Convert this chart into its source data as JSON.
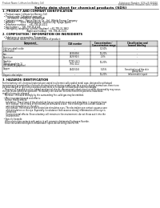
{
  "bg_color": "#ffffff",
  "header_top_left": "Product Name: Lithium Ion Battery Cell",
  "header_top_right_l1": "Substance Number: SDS-LIB-000010",
  "header_top_right_l2": "Establishment / Revision: Dec.7.2016",
  "title": "Safety data sheet for chemical products (SDS)",
  "section1_title": "1. PRODUCT AND COMPANY IDENTIFICATION",
  "section1_lines": [
    "  • Product name: Lithium Ion Battery Cell",
    "  • Product code: Cylindrical-type cell",
    "       (UF186500, UF186550, UF186601A)",
    "  • Company name:    Sanyo Electric Co., Ltd., Mobile Energy Company",
    "  • Address:        2001, Kaminakaura, Sumoto-City, Hyogo, Japan",
    "  • Telephone number:    +81-799-26-4111",
    "  • Fax number:    +81-799-26-4129",
    "  • Emergency telephone number (daytime): +81-799-26-3662",
    "                                  (Night and holiday): +81-799-26-3131"
  ],
  "section2_title": "2. COMPOSITION / INFORMATION ON INGREDIENTS",
  "section2_intro": "  • Substance or preparation: Preparation",
  "section2_sub": "    • Information about the chemical nature of product:",
  "table_rows": [
    [
      "Lithium cobalt oxide",
      "(LiMnCoO4)",
      "",
      "-",
      "30-50%",
      "-"
    ],
    [
      "Iron",
      "",
      "",
      "7439-89-6",
      "10-20%",
      "-"
    ],
    [
      "Aluminum",
      "",
      "",
      "7429-90-5",
      "2-5%",
      "-"
    ],
    [
      "Graphite",
      "(Anode graphite-1)",
      "(UF186601A graphite)",
      "77782-42-5\n7782-44-2",
      "10-20%",
      "-"
    ],
    [
      "Copper",
      "",
      "",
      "7440-50-8",
      "5-15%",
      "Sensitization of the skin\ngroup No.2"
    ],
    [
      "Organic electrolyte",
      "",
      "",
      "-",
      "10-20%",
      "Inflammable liquid"
    ]
  ],
  "section3_title": "3. HAZARDS IDENTIFICATION",
  "section3_text": [
    "For the battery cell, chemical materials are stored in a hermetically sealed metal case, designed to withstand",
    "temperatures generated by electrode-electrochemical during normal use. As a result, during normal use, there is no",
    "physical danger of ignition or explosion and there is no danger of hazardous material leakage.",
    "    However, if exposed to a fire, added mechanical shocks, decomposed, short-circuit or other abnormality may occur,",
    "the gas inside cannot be operated. The battery cell case will be breached of fire-patterns, hazardous",
    "materials may be released.",
    "    Moreover, if heated strongly by the surrounding fire, solid gas may be emitted.",
    "",
    "  • Most important hazard and effects:",
    "    Human health effects:",
    "      Inhalation: The release of the electrolyte has an anesthetic action and stimulates in respiratory tract.",
    "      Skin contact: The release of the electrolyte stimulates a skin. The electrolyte skin contact causes a",
    "      sore and stimulation on the skin.",
    "      Eye contact: The release of the electrolyte stimulates eyes. The electrolyte eye contact causes a sore",
    "      and stimulation on the eye. Especially, a substance that causes a strong inflammation of the eye is",
    "      contained.",
    "      Environmental effects: Since a battery cell remains in the environment, do not throw out it into the",
    "      environment.",
    "",
    "  • Specific hazards:",
    "    If the electrolyte contacts with water, it will generate detrimental hydrogen fluoride.",
    "    Since the used electrolyte is inflammable liquid, do not bring close to fire."
  ]
}
